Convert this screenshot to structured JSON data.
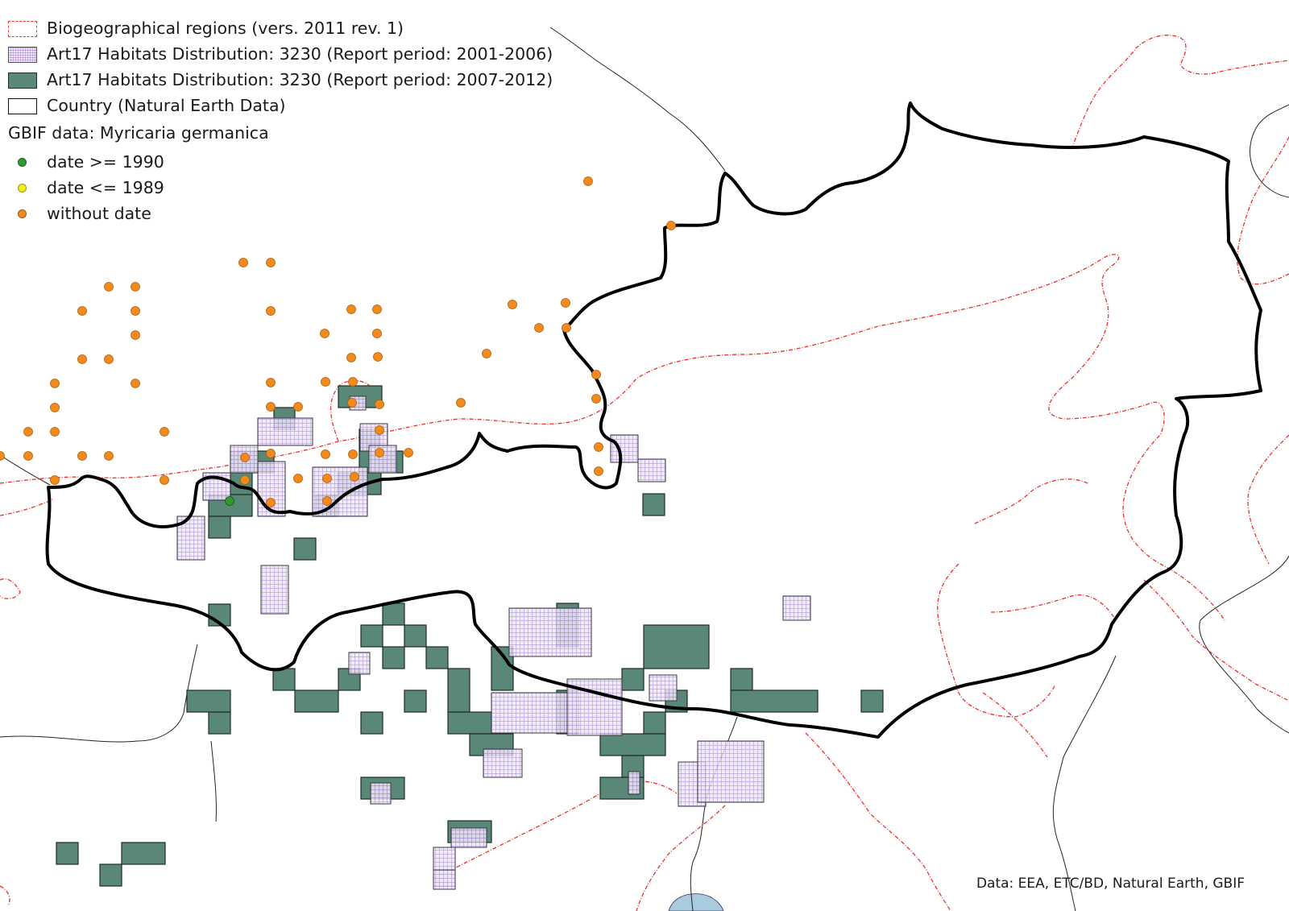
{
  "legend": {
    "biogeo": "Biogeographical regions (vers. 2011 rev. 1)",
    "habitat_2001": "Art17 Habitats Distribution: 3230 (Report period: 2001-2006)",
    "habitat_2007": "Art17 Habitats Distribution: 3230 (Report period: 2007-2012)",
    "country": "Country (Natural Earth Data)",
    "gbif_title": "GBIF data:  Myricaria germanica",
    "date_recent": "date  >= 1990",
    "date_old": "date <= 1989",
    "no_date": "without date"
  },
  "credit": "Data: EEA, ETC/BD, Natural Earth, GBIF",
  "colors": {
    "biogeo_border": "#e8302c",
    "habitat_2001_fill": "#efe6f7",
    "habitat_2001_hatch": "#9b6fd0",
    "habitat_2007_fill": "#5a8878",
    "country_border": "#000000",
    "neighbor_border": "#222222",
    "dot_recent": "#2e9a2e",
    "dot_old": "#f2ee1a",
    "dot_no_date": "#f28a1e",
    "lake": "#a8cbe0"
  }
}
